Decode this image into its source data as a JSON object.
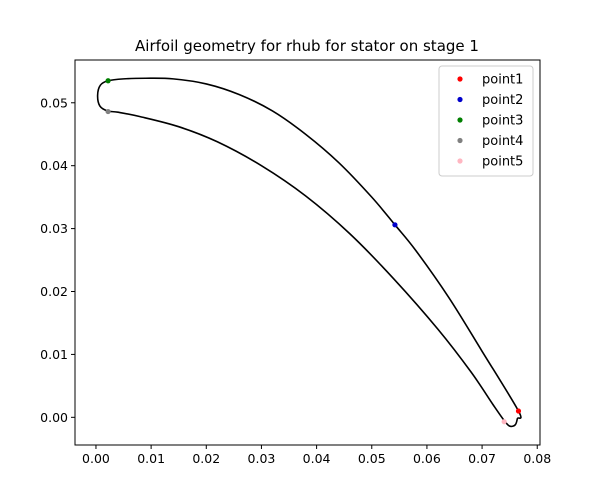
{
  "chart_data": {
    "type": "line",
    "title": "Airfoil geometry for rhub for stator on stage 1",
    "xlabel": "",
    "ylabel": "",
    "xlim": [
      -0.0038,
      0.0805
    ],
    "ylim": [
      -0.0044,
      0.0568
    ],
    "x_ticks": [
      0.0,
      0.01,
      0.02,
      0.03,
      0.04,
      0.05,
      0.06,
      0.07,
      0.08
    ],
    "x_tick_labels": [
      "0.00",
      "0.01",
      "0.02",
      "0.03",
      "0.04",
      "0.05",
      "0.06",
      "0.07",
      "0.08"
    ],
    "y_ticks": [
      0.0,
      0.01,
      0.02,
      0.03,
      0.04,
      0.05
    ],
    "y_tick_labels": [
      "0.00",
      "0.01",
      "0.02",
      "0.03",
      "0.04",
      "0.05"
    ],
    "grid": false,
    "legend_position": "top-right",
    "outline": {
      "color": "#000000",
      "x": [
        0.0766,
        0.07,
        0.064,
        0.058,
        0.0542,
        0.05,
        0.044,
        0.038,
        0.032,
        0.026,
        0.02,
        0.014,
        0.009,
        0.005,
        0.0022,
        0.0008,
        0.0003,
        0.0007,
        0.0021,
        0.004,
        0.008,
        0.015,
        0.022,
        0.03,
        0.038,
        0.046,
        0.054,
        0.062,
        0.068,
        0.072,
        0.074,
        0.075,
        0.076,
        0.0764,
        0.0766
      ],
      "y": [
        0.001,
        0.0105,
        0.019,
        0.0265,
        0.0306,
        0.035,
        0.0405,
        0.045,
        0.0487,
        0.0513,
        0.053,
        0.0538,
        0.0539,
        0.0538,
        0.0535,
        0.0528,
        0.0512,
        0.0495,
        0.0487,
        0.0485,
        0.0478,
        0.0462,
        0.0438,
        0.04,
        0.0352,
        0.0292,
        0.022,
        0.014,
        0.0072,
        0.002,
        -0.0005,
        -0.0014,
        -0.0012,
        -0.0002,
        0.001
      ]
    },
    "series": [
      {
        "name": "point1",
        "color": "#ff0000",
        "x": [
          0.0766
        ],
        "y": [
          0.001
        ]
      },
      {
        "name": "point2",
        "color": "#0000cc",
        "x": [
          0.0542
        ],
        "y": [
          0.0306
        ]
      },
      {
        "name": "point3",
        "color": "#007f00",
        "x": [
          0.0022
        ],
        "y": [
          0.0535
        ]
      },
      {
        "name": "point4",
        "color": "#808080",
        "x": [
          0.0022
        ],
        "y": [
          0.0486
        ]
      },
      {
        "name": "point5",
        "color": "#ffb6c1",
        "x": [
          0.074
        ],
        "y": [
          -0.0007
        ]
      }
    ]
  }
}
